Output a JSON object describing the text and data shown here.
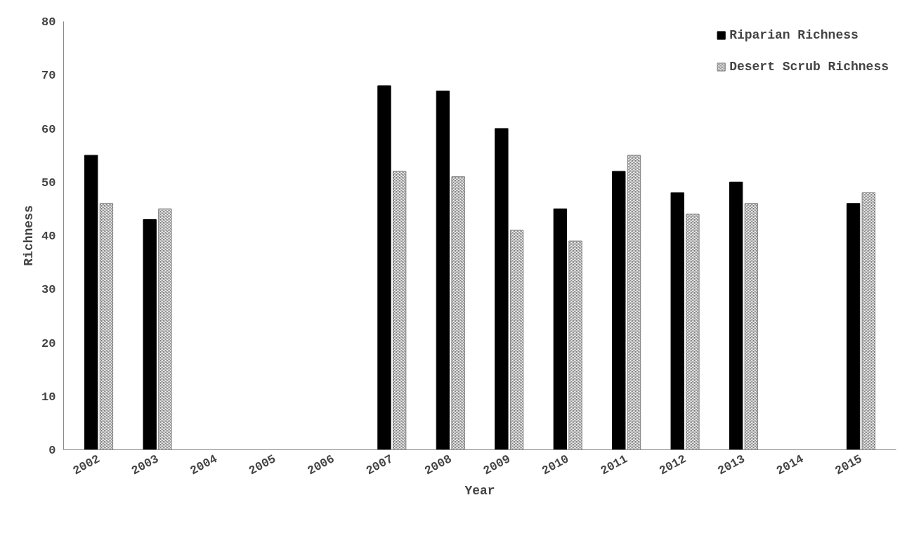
{
  "chart_data": {
    "type": "bar",
    "xlabel": "Year",
    "ylabel": "Richness",
    "categories": [
      "2002",
      "2003",
      "2004",
      "2005",
      "2006",
      "2007",
      "2008",
      "2009",
      "2010",
      "2011",
      "2012",
      "2013",
      "2014",
      "2015"
    ],
    "series": [
      {
        "name": "Riparian Richness",
        "color": "#000000",
        "values": [
          55,
          43,
          null,
          null,
          null,
          68,
          67,
          60,
          45,
          52,
          48,
          50,
          null,
          46
        ]
      },
      {
        "name": "Desert Scrub Richness",
        "color": "#808080",
        "values": [
          46,
          45,
          null,
          null,
          null,
          52,
          51,
          41,
          39,
          55,
          44,
          46,
          null,
          48
        ]
      }
    ],
    "ylim": [
      0,
      80
    ],
    "yticks": [
      0,
      10,
      20,
      30,
      40,
      50,
      60,
      70,
      80
    ],
    "grid": false,
    "legend": "top right"
  }
}
